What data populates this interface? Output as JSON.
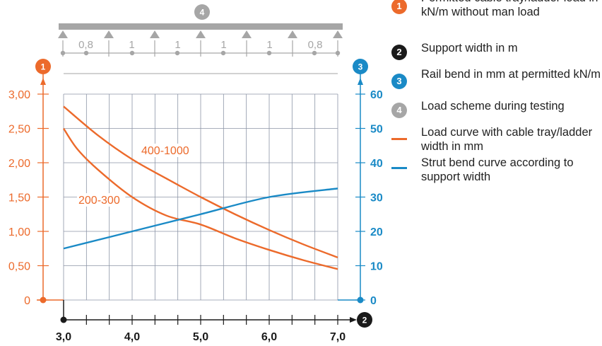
{
  "chart_data": {
    "type": "line",
    "x_ticks": [
      "3,0",
      "4,0",
      "5,0",
      "6,0",
      "7,0"
    ],
    "x_range": [
      3.0,
      7.0
    ],
    "y_left_ticks": [
      "0",
      "0,50",
      "1,00",
      "1,50",
      "2,00",
      "2,50",
      "3,00"
    ],
    "y_left_range": [
      0,
      3.0
    ],
    "y_right_ticks": [
      "0",
      "10",
      "20",
      "30",
      "40",
      "50",
      "60"
    ],
    "y_right_range": [
      0,
      60
    ],
    "grid": true,
    "series": [
      {
        "name": "400-1000",
        "axis": "left",
        "color": "#ec6a2b",
        "x": [
          3.0,
          3.5,
          4.0,
          4.5,
          5.0,
          5.5,
          6.0,
          6.5,
          7.0
        ],
        "y": [
          2.82,
          2.4,
          2.05,
          1.77,
          1.5,
          1.25,
          1.02,
          0.81,
          0.62
        ]
      },
      {
        "name": "200-300",
        "axis": "left",
        "color": "#ec6a2b",
        "x": [
          3.0,
          3.2,
          3.5,
          4.0,
          4.5,
          5.0,
          5.5,
          6.0,
          6.5,
          7.0
        ],
        "y": [
          2.5,
          2.2,
          1.9,
          1.5,
          1.23,
          1.1,
          0.9,
          0.73,
          0.58,
          0.45
        ]
      },
      {
        "name": "",
        "axis": "right",
        "color": "#1a8ac6",
        "x": [
          3.0,
          4.0,
          5.0,
          6.0,
          7.0
        ],
        "y": [
          15,
          20,
          25,
          30,
          32.5
        ]
      }
    ],
    "markers": {
      "left_axis": "1",
      "right_axis": "3",
      "x_axis": "2",
      "load_scheme": "4"
    },
    "load_scheme_spans": [
      "0,8",
      "1",
      "1",
      "1",
      "1",
      "0,8"
    ]
  },
  "legend": [
    {
      "marker": "1",
      "kind": "badge",
      "color": "#ec6a2b",
      "text": "Permitted cable tray/ladder load in kN/m without man load"
    },
    {
      "marker": "2",
      "kind": "badge",
      "color": "#1a1a1a",
      "text": "Support width in m"
    },
    {
      "marker": "3",
      "kind": "badge",
      "color": "#1a8ac6",
      "text": "Rail bend in mm at permitted kN/m"
    },
    {
      "marker": "4",
      "kind": "badge",
      "color": "#a6a6a6",
      "text": "Load scheme during testing"
    },
    {
      "marker": "",
      "kind": "line",
      "color": "#ec6a2b",
      "text": "Load curve with cable tray/ladder width in mm"
    },
    {
      "marker": "",
      "kind": "line",
      "color": "#1a8ac6",
      "text": "Strut bend curve according to support width"
    }
  ]
}
